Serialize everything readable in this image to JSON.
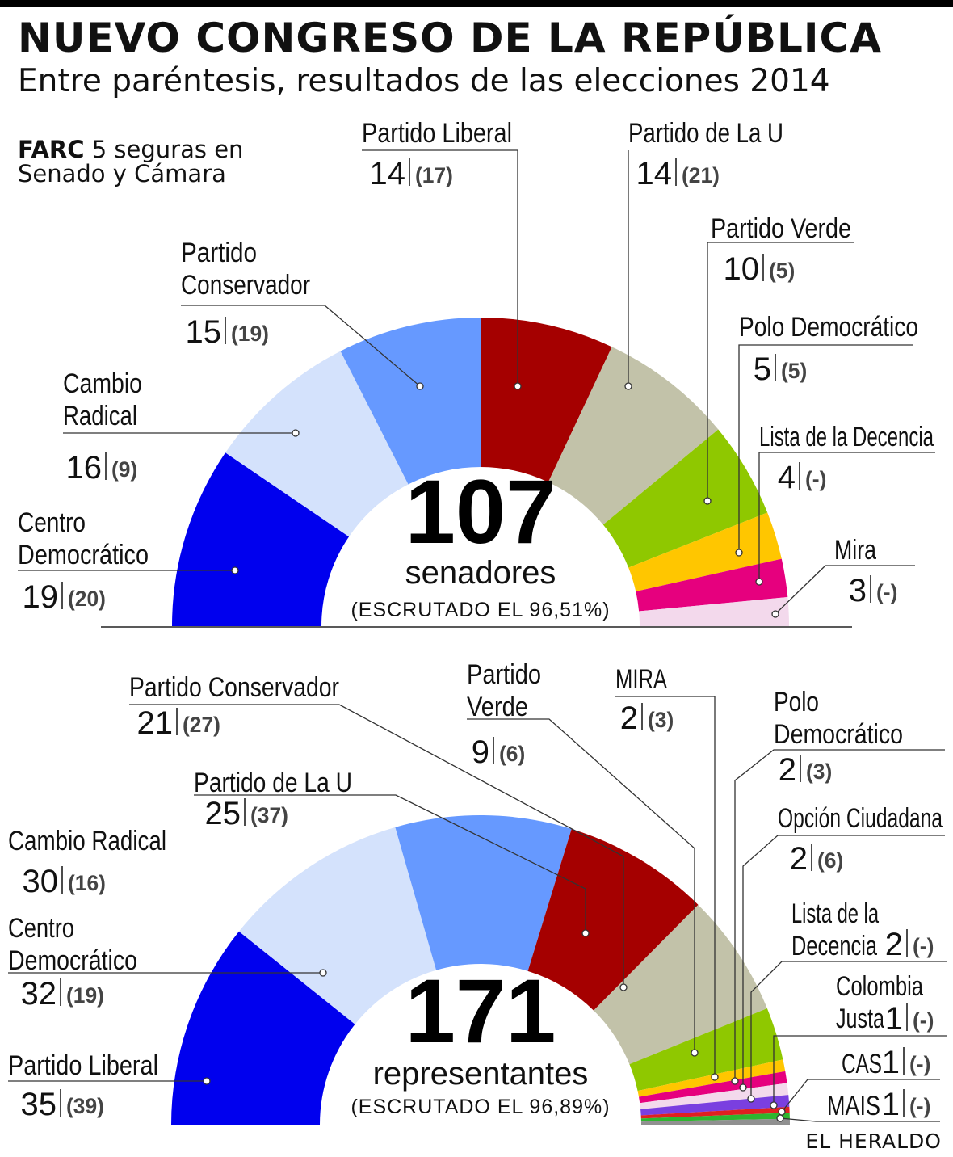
{
  "header": {
    "title": "NUEVO CONGRESO DE LA REPÚBLICA",
    "subtitle": "Entre paréntesis, resultados de las elecciones 2014"
  },
  "note": {
    "bold": "FARC",
    "text": "5 seguras en Senado y Cámara"
  },
  "source": "EL HERALDO",
  "chart_data": [
    {
      "type": "pie",
      "total": "107",
      "total_label": "senadores",
      "scrutiny": "(ESCRUTADO EL 96,51%)",
      "series": [
        {
          "name": "Centro Democrático",
          "value": 19,
          "previous": "(20)",
          "color": "#0000ee"
        },
        {
          "name": "Cambio Radical",
          "value": 16,
          "previous": "(9)",
          "color": "#d4e2fc"
        },
        {
          "name": "Partido Conservador",
          "value": 15,
          "previous": "(19)",
          "color": "#6699ff"
        },
        {
          "name": "Partido Liberal",
          "value": 14,
          "previous": "(17)",
          "color": "#a50000"
        },
        {
          "name": "Partido de La U",
          "value": 14,
          "previous": "(21)",
          "color": "#c2c2a9"
        },
        {
          "name": "Partido Verde",
          "value": 10,
          "previous": "(5)",
          "color": "#8fc800"
        },
        {
          "name": "Polo Democrático",
          "value": 5,
          "previous": "(5)",
          "color": "#ffc600"
        },
        {
          "name": "Lista de la Decencia",
          "value": 4,
          "previous": "(-)",
          "color": "#e6007e"
        },
        {
          "name": "Mira",
          "value": 3,
          "previous": "(-)",
          "color": "#f3d9ec"
        }
      ]
    },
    {
      "type": "pie",
      "total": "171",
      "total_label": "representantes",
      "scrutiny": "(ESCRUTADO EL 96,89%)",
      "series": [
        {
          "name": "Partido Liberal",
          "value": 35,
          "previous": "(39)",
          "color": "#0000ee"
        },
        {
          "name": "Centro Democrático",
          "value": 32,
          "previous": "(19)",
          "color": "#d4e2fc"
        },
        {
          "name": "Cambio Radical",
          "value": 30,
          "previous": "(16)",
          "color": "#6699ff"
        },
        {
          "name": "Partido de La U",
          "value": 25,
          "previous": "(37)",
          "color": "#a50000"
        },
        {
          "name": "Partido Conservador",
          "value": 21,
          "previous": "(27)",
          "color": "#c2c2a9"
        },
        {
          "name": "Partido Verde",
          "value": 9,
          "previous": "(6)",
          "color": "#8fc800"
        },
        {
          "name": "MIRA",
          "value": 2,
          "previous": "(3)",
          "color": "#ffc600"
        },
        {
          "name": "Polo Democrático",
          "value": 2,
          "previous": "(3)",
          "color": "#e6007e"
        },
        {
          "name": "Opción Ciudadana",
          "value": 2,
          "previous": "(6)",
          "color": "#f3d9ec"
        },
        {
          "name": "Lista de la Decencia",
          "value": 2,
          "previous": "(-)",
          "color": "#7a3fe0"
        },
        {
          "name": "Colombia Justa",
          "value": 1,
          "previous": "(-)",
          "color": "#e02020"
        },
        {
          "name": "CAS",
          "value": 1,
          "previous": "(-)",
          "color": "#2fb52f"
        },
        {
          "name": "MAIS",
          "value": 1,
          "previous": "(-)",
          "color": "#909090"
        }
      ]
    }
  ]
}
